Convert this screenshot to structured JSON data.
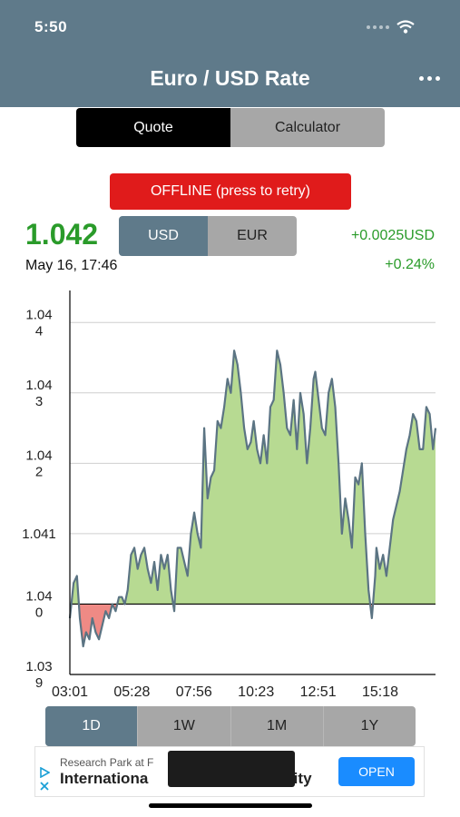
{
  "status_bar": {
    "time": "5:50"
  },
  "header": {
    "title": "Euro / USD Rate",
    "menu_icon": "more-horizontal-icon"
  },
  "mode_tabs": [
    {
      "label": "Quote",
      "active": true
    },
    {
      "label": "Calculator",
      "active": false
    }
  ],
  "offline_button": "OFFLINE (press to retry)",
  "quote": {
    "rate": "1.042",
    "date": "May 16, 17:46",
    "change_abs": "+0.0025USD",
    "change_pct": "+0.24%"
  },
  "currency_tabs": [
    {
      "label": "USD",
      "active": true
    },
    {
      "label": "EUR",
      "active": false
    }
  ],
  "range_tabs": [
    {
      "label": "1D",
      "active": true
    },
    {
      "label": "1W",
      "active": false
    },
    {
      "label": "1M",
      "active": false
    },
    {
      "label": "1Y",
      "active": false
    }
  ],
  "ad": {
    "line1": "Research Park at F",
    "line2": "Internationa",
    "line2_end": "nity",
    "open_label": "OPEN",
    "adchoices_icon": "adchoices-icon"
  },
  "colors": {
    "header": "#5f7a8a",
    "positive": "#2a9b2a",
    "area_above": "#b7da92",
    "area_below": "#ef8a85",
    "line": "#5b7483",
    "offline": "#e01b1b",
    "open_button": "#1a8cff"
  },
  "chart_data": {
    "type": "area",
    "baseline": 1.04,
    "ylim": [
      1.039,
      1.0443
    ],
    "y_ticks": [
      {
        "value": 1.039,
        "label": "1.03\n9"
      },
      {
        "value": 1.04,
        "label": "1.04\n0"
      },
      {
        "value": 1.041,
        "label": "1.041"
      },
      {
        "value": 1.042,
        "label": "1.04\n2"
      },
      {
        "value": 1.043,
        "label": "1.04\n3"
      },
      {
        "value": 1.044,
        "label": "1.04\n4"
      }
    ],
    "x_ticks": [
      "03:01",
      "05:28",
      "07:56",
      "10:23",
      "12:51",
      "15:18"
    ],
    "x_range": [
      "03:01",
      "17:40"
    ],
    "grid": true,
    "series": [
      {
        "x": [
          "03:01",
          "03:10",
          "03:18",
          "03:25",
          "03:33",
          "03:40",
          "03:48",
          "03:55",
          "04:03",
          "04:11",
          "04:19",
          "04:27",
          "04:35",
          "04:43",
          "04:51",
          "04:59",
          "05:06",
          "05:13",
          "05:20",
          "05:28",
          "05:36",
          "05:44",
          "05:52",
          "06:00",
          "06:08",
          "06:16",
          "06:24",
          "06:32",
          "06:40",
          "06:48",
          "06:56",
          "07:04",
          "07:12",
          "07:20",
          "07:28",
          "07:36",
          "07:44",
          "07:52",
          "08:00",
          "08:08",
          "08:16",
          "08:24",
          "08:32",
          "08:40",
          "08:48",
          "08:56",
          "09:04",
          "09:12",
          "09:20",
          "09:28",
          "09:36",
          "09:44",
          "09:52",
          "10:00",
          "10:08",
          "10:16",
          "10:23",
          "10:31",
          "10:39",
          "10:47",
          "10:55",
          "11:03",
          "11:11",
          "11:19",
          "11:27",
          "11:35",
          "11:43",
          "11:51",
          "11:59",
          "12:07",
          "12:15",
          "12:23",
          "12:31",
          "12:39",
          "12:47",
          "12:51",
          "12:59",
          "13:07",
          "13:15",
          "13:23",
          "13:31",
          "13:39",
          "13:47",
          "13:55",
          "14:03",
          "14:11",
          "14:19",
          "14:27",
          "14:35",
          "14:43",
          "14:51",
          "14:59",
          "15:07",
          "15:15",
          "15:18",
          "15:26",
          "15:34",
          "15:42",
          "15:50",
          "15:58",
          "16:06",
          "16:14",
          "16:22",
          "16:30",
          "16:38",
          "16:46",
          "16:54",
          "17:02",
          "17:10",
          "17:18",
          "17:26",
          "17:34",
          "17:40"
        ],
        "values": [
          1.0398,
          1.0403,
          1.0404,
          1.0398,
          1.0394,
          1.0396,
          1.0395,
          1.0398,
          1.0396,
          1.0395,
          1.0397,
          1.0399,
          1.0398,
          1.04,
          1.0399,
          1.0401,
          1.0401,
          1.04,
          1.0402,
          1.0407,
          1.0408,
          1.0405,
          1.0407,
          1.0408,
          1.0405,
          1.0403,
          1.0406,
          1.0402,
          1.0407,
          1.0405,
          1.0407,
          1.0402,
          1.0399,
          1.0408,
          1.0408,
          1.0406,
          1.0404,
          1.041,
          1.0413,
          1.041,
          1.0408,
          1.0425,
          1.0415,
          1.0418,
          1.0419,
          1.0426,
          1.0425,
          1.0428,
          1.0432,
          1.043,
          1.0436,
          1.0434,
          1.043,
          1.0425,
          1.0422,
          1.0423,
          1.0426,
          1.0422,
          1.042,
          1.0424,
          1.042,
          1.0428,
          1.0429,
          1.0436,
          1.0434,
          1.043,
          1.0425,
          1.0424,
          1.0429,
          1.0422,
          1.043,
          1.0427,
          1.042,
          1.0425,
          1.0432,
          1.0433,
          1.0429,
          1.0425,
          1.0424,
          1.043,
          1.0432,
          1.0428,
          1.042,
          1.041,
          1.0415,
          1.0412,
          1.0408,
          1.0418,
          1.0417,
          1.042,
          1.041,
          1.0402,
          1.0398,
          1.0404,
          1.0408,
          1.0405,
          1.0407,
          1.0404,
          1.0408,
          1.0412,
          1.0414,
          1.0416,
          1.0419,
          1.0422,
          1.0424,
          1.0427,
          1.0426,
          1.0422,
          1.0422,
          1.0428,
          1.0427,
          1.0422,
          1.0425
        ]
      }
    ]
  }
}
